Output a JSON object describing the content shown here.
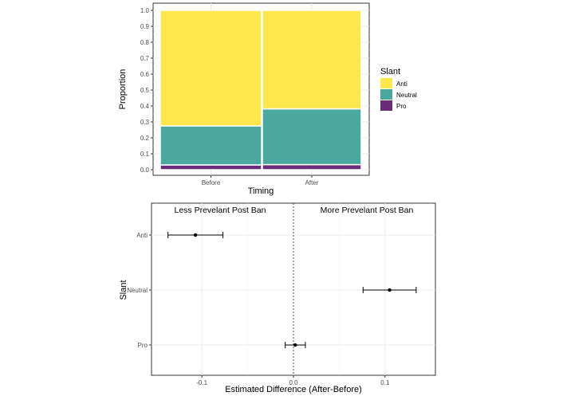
{
  "chart_data": [
    {
      "type": "bar",
      "subtype": "stacked-proportion (mosaic)",
      "xlabel": "Timing",
      "ylabel": "Proportion",
      "categories": [
        "Before",
        "After"
      ],
      "ylim": [
        0,
        1
      ],
      "yticks": [
        "0.0",
        "0.1",
        "0.2",
        "0.3",
        "0.4",
        "0.5",
        "0.6",
        "0.7",
        "0.8",
        "0.9",
        "1.0"
      ],
      "grid": true,
      "legend": {
        "title": "Slant",
        "placement": "right",
        "entries": [
          "Anti",
          "Neutral",
          "Pro"
        ]
      },
      "series": [
        {
          "name": "Pro",
          "color": "#6a2c79",
          "values": [
            0.03,
            0.032
          ]
        },
        {
          "name": "Neutral",
          "color": "#4aa89f",
          "values": [
            0.245,
            0.35
          ]
        },
        {
          "name": "Anti",
          "color": "#fde74c",
          "values": [
            0.725,
            0.618
          ]
        }
      ]
    },
    {
      "type": "scatter",
      "subtype": "point estimates with error bars",
      "xlabel": "Estimated Difference (After-Before)",
      "ylabel": "Slant",
      "xlim": [
        -0.155,
        0.155
      ],
      "xticks": [
        "-0.1",
        "0.0",
        "0.1"
      ],
      "categories": [
        "Anti",
        "Neutral",
        "Pro"
      ],
      "grid": true,
      "reference_line": 0.0,
      "annotations": [
        "Less Prevelant Post Ban",
        "More Prevelant Post Ban"
      ],
      "points": [
        {
          "category": "Anti",
          "estimate": -0.107,
          "lower": -0.137,
          "upper": -0.077
        },
        {
          "category": "Neutral",
          "estimate": 0.105,
          "lower": 0.076,
          "upper": 0.134
        },
        {
          "category": "Pro",
          "estimate": 0.002,
          "lower": -0.009,
          "upper": 0.013
        }
      ]
    }
  ]
}
